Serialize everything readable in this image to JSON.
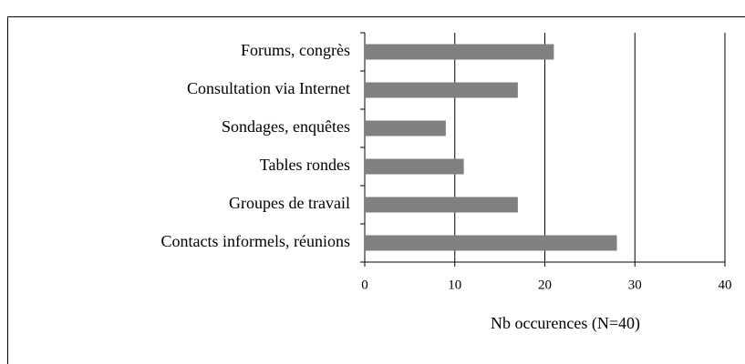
{
  "chart_data": {
    "type": "bar",
    "orientation": "horizontal",
    "x_label": "Nb occurences (N=40)",
    "categories": [
      "Forums, congrès",
      "Consultation via Internet",
      "Sondages, enquêtes",
      "Tables rondes",
      "Groupes de travail",
      "Contacts informels, réunions"
    ],
    "values": [
      21,
      17,
      9,
      11,
      17,
      28
    ],
    "color": "#808080",
    "xlim": [
      0,
      40
    ],
    "xticks": [
      0,
      10,
      20,
      30,
      40
    ],
    "grid": true
  }
}
